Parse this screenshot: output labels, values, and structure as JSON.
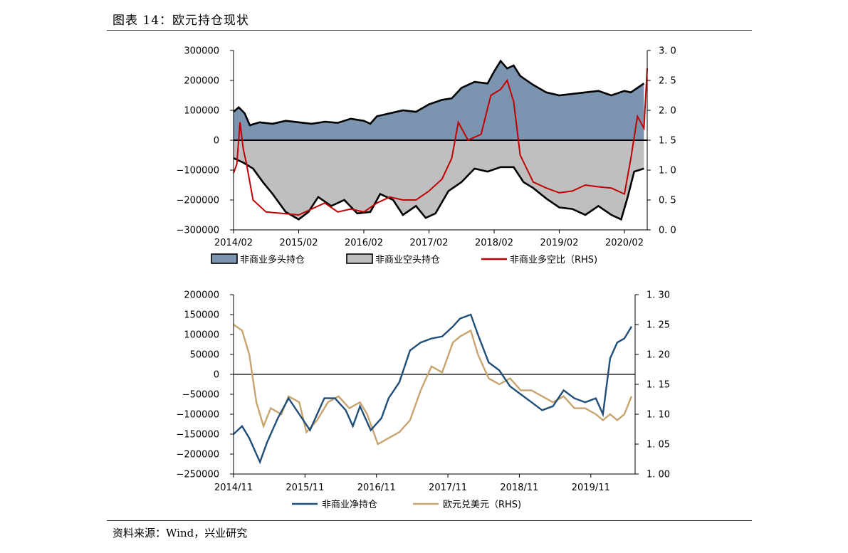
{
  "header": {
    "title": "图表 14：欧元持仓现状"
  },
  "footer": {
    "source": "资料来源：Wind，兴业研究"
  },
  "colors": {
    "long_fill": "#7b95b0",
    "short_fill": "#bfbfbf",
    "outline": "#000000",
    "ratio_line": "#c00000",
    "net_line": "#1f4e79",
    "eurusd_line": "#c8a46e"
  },
  "chart_data": [
    {
      "type": "area",
      "title": "",
      "x_tick_labels": [
        "2014/02",
        "2015/02",
        "2016/02",
        "2017/02",
        "2018/02",
        "2019/02",
        "2020/02"
      ],
      "x_range": [
        2014.0,
        2020.35
      ],
      "y_left_ticks": [
        "300000",
        "200000",
        "100000",
        "0",
        "−100000",
        "−200000",
        "−300000"
      ],
      "ylim_left": [
        -300000,
        300000
      ],
      "y_right_ticks": [
        "3. 0",
        "2. 5",
        "2. 0",
        "1. 5",
        "1. 0",
        "0. 5",
        "0. 0"
      ],
      "ylim_right": [
        0.0,
        3.0
      ],
      "legend": [
        "非商业多头持仓",
        "非商业空头持仓",
        "非商业多空比（RHS)"
      ],
      "legend_position": "bottom",
      "series": [
        {
          "name": "非商业多头持仓",
          "kind": "area-positive",
          "points": [
            [
              2014.0,
              95000
            ],
            [
              2014.08,
              110000
            ],
            [
              2014.17,
              90000
            ],
            [
              2014.25,
              50000
            ],
            [
              2014.4,
              60000
            ],
            [
              2014.6,
              55000
            ],
            [
              2014.8,
              65000
            ],
            [
              2015.0,
              60000
            ],
            [
              2015.2,
              55000
            ],
            [
              2015.4,
              62000
            ],
            [
              2015.6,
              58000
            ],
            [
              2015.8,
              72000
            ],
            [
              2016.0,
              65000
            ],
            [
              2016.1,
              55000
            ],
            [
              2016.2,
              80000
            ],
            [
              2016.4,
              90000
            ],
            [
              2016.6,
              100000
            ],
            [
              2016.8,
              95000
            ],
            [
              2017.0,
              120000
            ],
            [
              2017.2,
              135000
            ],
            [
              2017.35,
              140000
            ],
            [
              2017.5,
              175000
            ],
            [
              2017.7,
              195000
            ],
            [
              2017.9,
              190000
            ],
            [
              2018.0,
              230000
            ],
            [
              2018.1,
              265000
            ],
            [
              2018.2,
              240000
            ],
            [
              2018.3,
              250000
            ],
            [
              2018.4,
              215000
            ],
            [
              2018.6,
              185000
            ],
            [
              2018.8,
              160000
            ],
            [
              2019.0,
              150000
            ],
            [
              2019.2,
              155000
            ],
            [
              2019.4,
              160000
            ],
            [
              2019.6,
              165000
            ],
            [
              2019.8,
              150000
            ],
            [
              2020.0,
              165000
            ],
            [
              2020.1,
              160000
            ],
            [
              2020.2,
              175000
            ],
            [
              2020.3,
              190000
            ]
          ]
        },
        {
          "name": "非商业空头持仓",
          "kind": "area-negative",
          "points": [
            [
              2014.0,
              -60000
            ],
            [
              2014.15,
              -75000
            ],
            [
              2014.3,
              -95000
            ],
            [
              2014.45,
              -140000
            ],
            [
              2014.6,
              -180000
            ],
            [
              2014.8,
              -240000
            ],
            [
              2015.0,
              -265000
            ],
            [
              2015.15,
              -240000
            ],
            [
              2015.3,
              -190000
            ],
            [
              2015.5,
              -220000
            ],
            [
              2015.7,
              -200000
            ],
            [
              2015.9,
              -245000
            ],
            [
              2016.1,
              -240000
            ],
            [
              2016.25,
              -180000
            ],
            [
              2016.45,
              -200000
            ],
            [
              2016.6,
              -250000
            ],
            [
              2016.8,
              -220000
            ],
            [
              2016.95,
              -260000
            ],
            [
              2017.1,
              -245000
            ],
            [
              2017.3,
              -170000
            ],
            [
              2017.5,
              -140000
            ],
            [
              2017.7,
              -95000
            ],
            [
              2017.9,
              -105000
            ],
            [
              2018.1,
              -90000
            ],
            [
              2018.3,
              -90000
            ],
            [
              2018.45,
              -140000
            ],
            [
              2018.6,
              -160000
            ],
            [
              2018.8,
              -195000
            ],
            [
              2019.0,
              -225000
            ],
            [
              2019.2,
              -230000
            ],
            [
              2019.4,
              -250000
            ],
            [
              2019.6,
              -220000
            ],
            [
              2019.8,
              -250000
            ],
            [
              2019.95,
              -265000
            ],
            [
              2020.05,
              -190000
            ],
            [
              2020.15,
              -105000
            ],
            [
              2020.3,
              -95000
            ]
          ]
        },
        {
          "name": "非商业多空比（RHS)",
          "kind": "line-right",
          "points": [
            [
              2014.0,
              0.95
            ],
            [
              2014.05,
              1.1
            ],
            [
              2014.1,
              1.8
            ],
            [
              2014.15,
              1.35
            ],
            [
              2014.2,
              1.1
            ],
            [
              2014.3,
              0.5
            ],
            [
              2014.5,
              0.3
            ],
            [
              2014.8,
              0.27
            ],
            [
              2015.0,
              0.25
            ],
            [
              2015.2,
              0.35
            ],
            [
              2015.4,
              0.45
            ],
            [
              2015.6,
              0.3
            ],
            [
              2015.8,
              0.35
            ],
            [
              2016.0,
              0.3
            ],
            [
              2016.2,
              0.45
            ],
            [
              2016.4,
              0.55
            ],
            [
              2016.6,
              0.5
            ],
            [
              2016.8,
              0.5
            ],
            [
              2017.0,
              0.65
            ],
            [
              2017.2,
              0.85
            ],
            [
              2017.35,
              1.2
            ],
            [
              2017.45,
              1.8
            ],
            [
              2017.6,
              1.5
            ],
            [
              2017.8,
              1.6
            ],
            [
              2017.95,
              2.25
            ],
            [
              2018.1,
              2.35
            ],
            [
              2018.2,
              2.5
            ],
            [
              2018.3,
              2.15
            ],
            [
              2018.4,
              1.25
            ],
            [
              2018.6,
              0.8
            ],
            [
              2018.8,
              0.7
            ],
            [
              2019.0,
              0.62
            ],
            [
              2019.2,
              0.65
            ],
            [
              2019.4,
              0.75
            ],
            [
              2019.6,
              0.72
            ],
            [
              2019.8,
              0.7
            ],
            [
              2020.0,
              0.6
            ],
            [
              2020.1,
              1.2
            ],
            [
              2020.2,
              1.9
            ],
            [
              2020.3,
              1.7
            ],
            [
              2020.35,
              2.7
            ]
          ]
        }
      ]
    },
    {
      "type": "line",
      "title": "",
      "x_tick_labels": [
        "2014/11",
        "2015/11",
        "2016/11",
        "2017/11",
        "2018/11",
        "2019/11"
      ],
      "x_range": [
        2014.83,
        2020.45
      ],
      "y_left_ticks": [
        "200000",
        "150000",
        "100000",
        "50000",
        "0",
        "−50000",
        "−100000",
        "−150000",
        "−200000",
        "−250000"
      ],
      "ylim_left": [
        -250000,
        200000
      ],
      "y_right_ticks": [
        "1. 30",
        "1. 25",
        "1. 20",
        "1. 15",
        "1. 10",
        "1. 05",
        "1. 00"
      ],
      "ylim_right": [
        1.0,
        1.3
      ],
      "legend": [
        "非商业净持仓",
        "欧元兑美元（RHS)"
      ],
      "legend_position": "bottom",
      "series": [
        {
          "name": "非商业净持仓",
          "kind": "line-left",
          "points": [
            [
              2014.83,
              -150000
            ],
            [
              2014.95,
              -130000
            ],
            [
              2015.05,
              -160000
            ],
            [
              2015.2,
              -220000
            ],
            [
              2015.3,
              -170000
            ],
            [
              2015.45,
              -110000
            ],
            [
              2015.6,
              -60000
            ],
            [
              2015.75,
              -100000
            ],
            [
              2015.9,
              -140000
            ],
            [
              2016.0,
              -100000
            ],
            [
              2016.1,
              -60000
            ],
            [
              2016.25,
              -60000
            ],
            [
              2016.4,
              -90000
            ],
            [
              2016.5,
              -130000
            ],
            [
              2016.6,
              -80000
            ],
            [
              2016.75,
              -140000
            ],
            [
              2016.9,
              -110000
            ],
            [
              2017.0,
              -60000
            ],
            [
              2017.15,
              -20000
            ],
            [
              2017.3,
              60000
            ],
            [
              2017.45,
              80000
            ],
            [
              2017.6,
              90000
            ],
            [
              2017.75,
              95000
            ],
            [
              2017.9,
              120000
            ],
            [
              2018.0,
              140000
            ],
            [
              2018.15,
              150000
            ],
            [
              2018.25,
              100000
            ],
            [
              2018.4,
              30000
            ],
            [
              2018.55,
              10000
            ],
            [
              2018.7,
              -30000
            ],
            [
              2018.85,
              -50000
            ],
            [
              2019.0,
              -70000
            ],
            [
              2019.15,
              -90000
            ],
            [
              2019.3,
              -80000
            ],
            [
              2019.45,
              -40000
            ],
            [
              2019.6,
              -60000
            ],
            [
              2019.75,
              -70000
            ],
            [
              2019.9,
              -60000
            ],
            [
              2020.0,
              -100000
            ],
            [
              2020.1,
              40000
            ],
            [
              2020.2,
              80000
            ],
            [
              2020.3,
              90000
            ],
            [
              2020.4,
              120000
            ]
          ]
        },
        {
          "name": "欧元兑美元（RHS)",
          "kind": "line-right",
          "points": [
            [
              2014.83,
              1.25
            ],
            [
              2014.95,
              1.24
            ],
            [
              2015.05,
              1.2
            ],
            [
              2015.15,
              1.12
            ],
            [
              2015.25,
              1.08
            ],
            [
              2015.35,
              1.11
            ],
            [
              2015.5,
              1.1
            ],
            [
              2015.6,
              1.13
            ],
            [
              2015.75,
              1.12
            ],
            [
              2015.85,
              1.07
            ],
            [
              2016.0,
              1.09
            ],
            [
              2016.15,
              1.12
            ],
            [
              2016.3,
              1.13
            ],
            [
              2016.45,
              1.11
            ],
            [
              2016.6,
              1.12
            ],
            [
              2016.7,
              1.1
            ],
            [
              2016.85,
              1.05
            ],
            [
              2017.0,
              1.06
            ],
            [
              2017.15,
              1.07
            ],
            [
              2017.3,
              1.09
            ],
            [
              2017.45,
              1.14
            ],
            [
              2017.6,
              1.18
            ],
            [
              2017.75,
              1.17
            ],
            [
              2017.9,
              1.22
            ],
            [
              2018.0,
              1.23
            ],
            [
              2018.15,
              1.24
            ],
            [
              2018.25,
              1.2
            ],
            [
              2018.4,
              1.16
            ],
            [
              2018.55,
              1.15
            ],
            [
              2018.7,
              1.16
            ],
            [
              2018.85,
              1.14
            ],
            [
              2019.0,
              1.14
            ],
            [
              2019.15,
              1.13
            ],
            [
              2019.3,
              1.12
            ],
            [
              2019.45,
              1.13
            ],
            [
              2019.6,
              1.11
            ],
            [
              2019.75,
              1.11
            ],
            [
              2019.9,
              1.1
            ],
            [
              2020.0,
              1.09
            ],
            [
              2020.1,
              1.1
            ],
            [
              2020.2,
              1.09
            ],
            [
              2020.3,
              1.1
            ],
            [
              2020.4,
              1.13
            ]
          ]
        }
      ]
    }
  ]
}
